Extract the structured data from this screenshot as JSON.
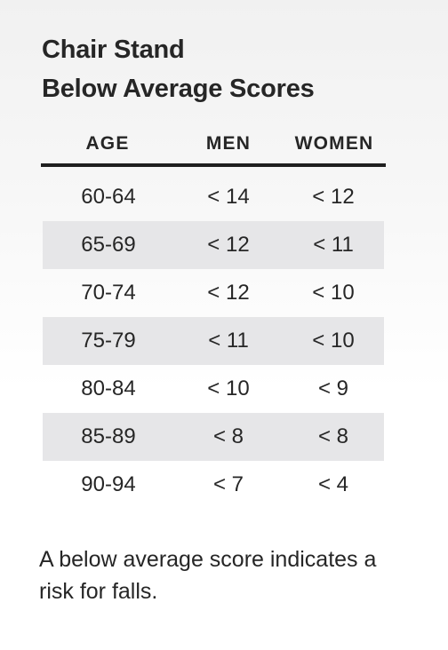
{
  "title": {
    "line1": "Chair Stand",
    "line2": "Below Average Scores"
  },
  "table": {
    "headers": [
      "AGE",
      "MEN",
      "WOMEN"
    ],
    "rows": [
      {
        "age": "60-64",
        "men": "< 14",
        "women": "< 12"
      },
      {
        "age": "65-69",
        "men": "< 12",
        "women": "< 11"
      },
      {
        "age": "70-74",
        "men": "< 12",
        "women": "< 10"
      },
      {
        "age": "75-79",
        "men": "< 11",
        "women": "< 10"
      },
      {
        "age": "80-84",
        "men": "< 10",
        "women": "< 9"
      },
      {
        "age": "85-89",
        "men": "< 8",
        "women": "< 8"
      },
      {
        "age": "90-94",
        "men": "< 7",
        "women": "< 4"
      }
    ]
  },
  "footnote": "A below average score indicates a risk for falls."
}
